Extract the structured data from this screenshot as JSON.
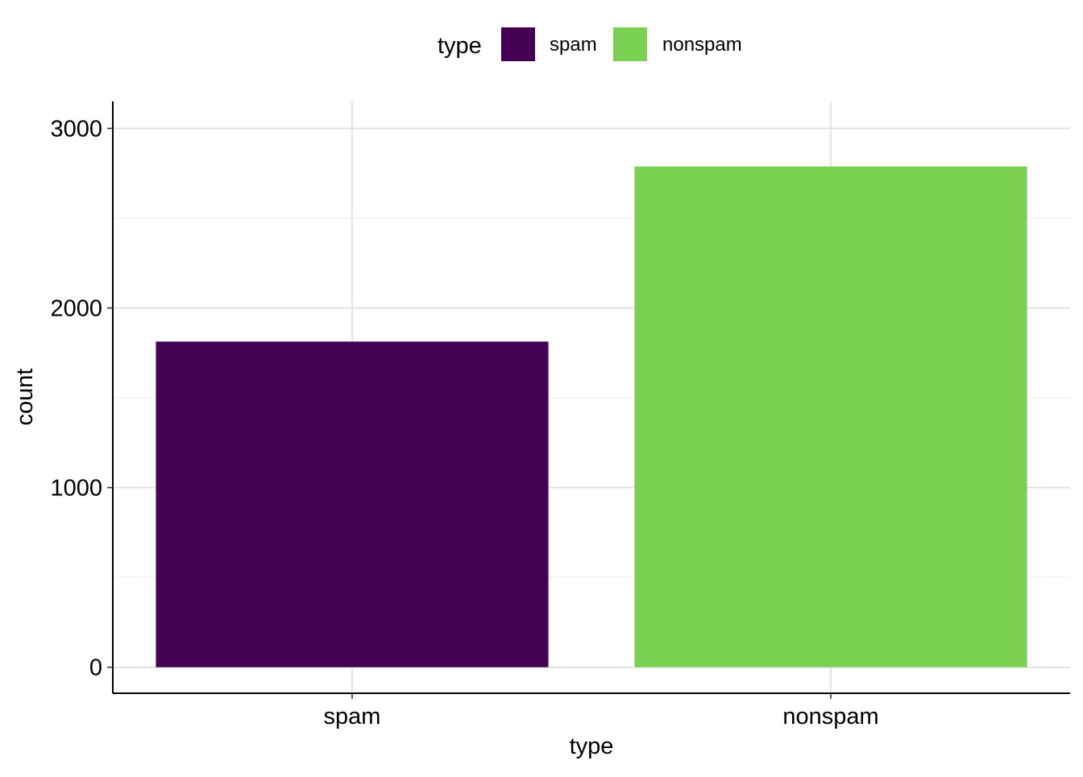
{
  "chart_data": {
    "type": "bar",
    "categories": [
      "spam",
      "nonspam"
    ],
    "values": [
      1813,
      2788
    ],
    "colors": [
      "#440154",
      "#7AD151"
    ],
    "xlabel": "type",
    "ylabel": "count",
    "yticks": [
      0,
      1000,
      2000,
      3000
    ],
    "ylim": [
      -145,
      3150
    ],
    "grid": true,
    "legend": {
      "title": "type",
      "position": "top",
      "items": [
        {
          "label": "spam",
          "color": "#440154"
        },
        {
          "label": "nonspam",
          "color": "#7AD151"
        }
      ]
    }
  }
}
